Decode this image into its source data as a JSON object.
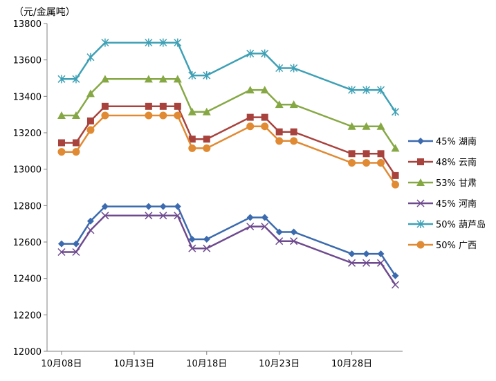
{
  "chart_data": {
    "type": "line",
    "title": "",
    "ylabel": "（元/金属吨）",
    "xlabel": "",
    "ylim": [
      12000,
      13800
    ],
    "yticks": [
      12000,
      12200,
      12400,
      12600,
      12800,
      13000,
      13200,
      13400,
      13600,
      13800
    ],
    "xticks": [
      {
        "day": 8,
        "label": "10月08日"
      },
      {
        "day": 13,
        "label": "10月13日"
      },
      {
        "day": 18,
        "label": "10月18日"
      },
      {
        "day": 23,
        "label": "10月23日"
      },
      {
        "day": 28,
        "label": "10月28日"
      }
    ],
    "x_day_range": [
      7,
      31.5
    ],
    "x": [
      8,
      9,
      10,
      11,
      14,
      15,
      16,
      17,
      18,
      21,
      22,
      23,
      24,
      28,
      29,
      30,
      31
    ],
    "grid": false,
    "legend_position": "right",
    "series": [
      {
        "name": "45% 湖南",
        "marker": "diamond",
        "color": "#3B6AAE",
        "values": [
          12590,
          12590,
          12715,
          12795,
          12795,
          12795,
          12795,
          12615,
          12615,
          12735,
          12735,
          12655,
          12655,
          12535,
          12535,
          12535,
          12415
        ]
      },
      {
        "name": "48% 云南",
        "marker": "square",
        "color": "#A8423C",
        "values": [
          13145,
          13145,
          13265,
          13345,
          13345,
          13345,
          13345,
          13165,
          13165,
          13285,
          13285,
          13205,
          13205,
          13085,
          13085,
          13085,
          12965
        ]
      },
      {
        "name": "53% 甘肃",
        "marker": "triangle",
        "color": "#86A844",
        "values": [
          13295,
          13295,
          13415,
          13495,
          13495,
          13495,
          13495,
          13315,
          13315,
          13435,
          13435,
          13355,
          13355,
          13235,
          13235,
          13235,
          13115
        ]
      },
      {
        "name": "45% 河南",
        "marker": "x",
        "color": "#6E4A8E",
        "values": [
          12545,
          12545,
          12665,
          12745,
          12745,
          12745,
          12745,
          12565,
          12565,
          12685,
          12685,
          12605,
          12605,
          12485,
          12485,
          12485,
          12365
        ]
      },
      {
        "name": "50% 葫芦岛",
        "marker": "star",
        "color": "#3EA0B5",
        "values": [
          13495,
          13495,
          13615,
          13695,
          13695,
          13695,
          13695,
          13515,
          13515,
          13635,
          13635,
          13555,
          13555,
          13435,
          13435,
          13435,
          13315
        ]
      },
      {
        "name": "50% 广西",
        "marker": "circle",
        "color": "#E08A33",
        "values": [
          13095,
          13095,
          13215,
          13295,
          13295,
          13295,
          13295,
          13115,
          13115,
          13235,
          13235,
          13155,
          13155,
          13035,
          13035,
          13035,
          12915
        ]
      }
    ]
  }
}
